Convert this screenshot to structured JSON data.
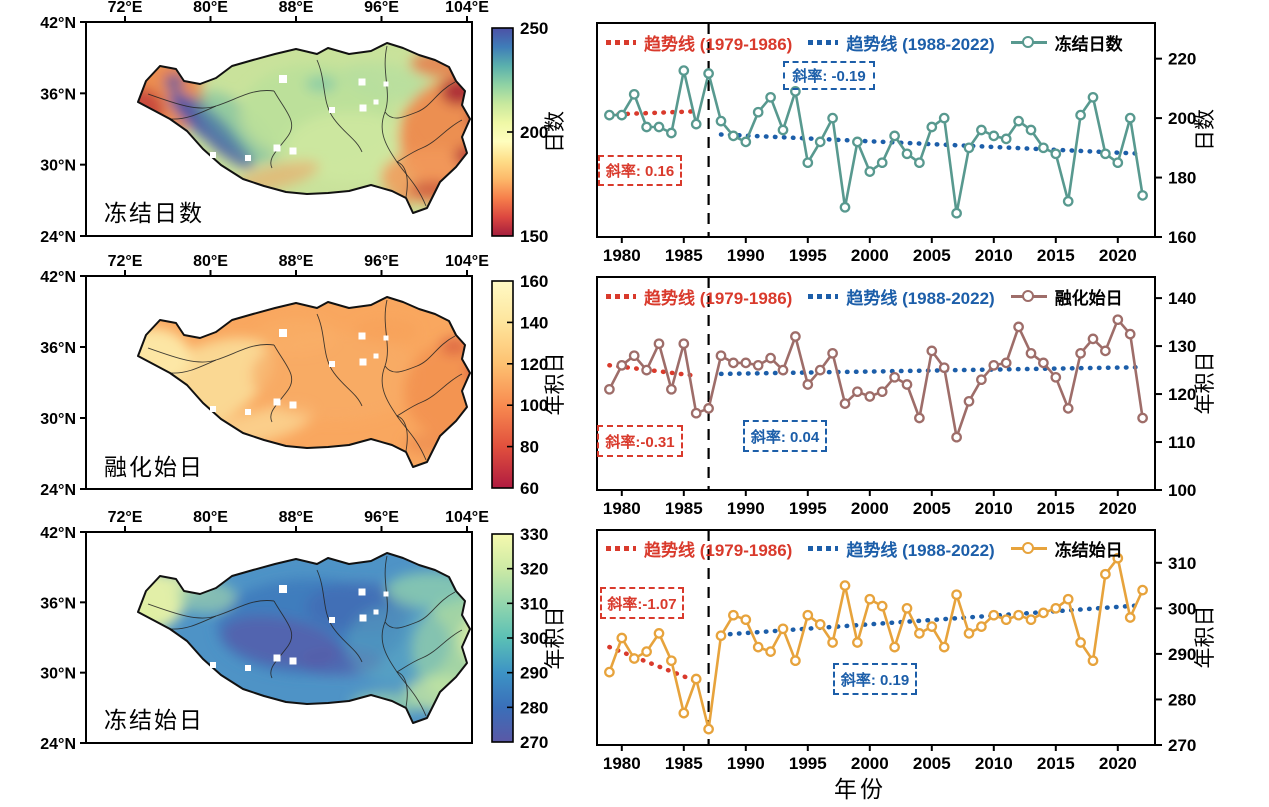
{
  "figure": {
    "xlabel": "年份",
    "background": "#ffffff",
    "accent_red": "#d93a2c",
    "accent_blue": "#1c5ea9"
  },
  "maps": [
    {
      "title": "冻结日数",
      "lon_ticks": [
        "72°E",
        "80°E",
        "88°E",
        "96°E",
        "104°E"
      ],
      "lat_ticks": [
        "42°N",
        "36°N",
        "30°N",
        "24°N"
      ],
      "colorbar": {
        "label": "日数",
        "min": 150,
        "max": 250,
        "ticks": [
          "250",
          "200",
          "150"
        ],
        "gradient_top_to_bottom": [
          "#4c51a5",
          "#3f7db8",
          "#5ab0ad",
          "#8fd2a4",
          "#c7e89e",
          "#eff8a6",
          "#fffebe",
          "#fede89",
          "#fdb869",
          "#f67f4b",
          "#dc4740",
          "#a41e3d"
        ]
      }
    },
    {
      "title": "融化始日",
      "lon_ticks": [
        "72°E",
        "80°E",
        "88°E",
        "96°E",
        "104°E"
      ],
      "lat_ticks": [
        "42°N",
        "36°N",
        "30°N",
        "24°N"
      ],
      "colorbar": {
        "label": "年积日",
        "min": 60,
        "max": 160,
        "ticks": [
          "160",
          "140",
          "120",
          "100",
          "80",
          "60"
        ],
        "gradient_top_to_bottom": [
          "#fffac5",
          "#fee59c",
          "#fdc171",
          "#f88b50",
          "#e1503d",
          "#b01b40"
        ]
      }
    },
    {
      "title": "冻结始日",
      "lon_ticks": [
        "72°E",
        "80°E",
        "88°E",
        "96°E",
        "104°E"
      ],
      "lat_ticks": [
        "42°N",
        "36°N",
        "30°N",
        "24°N"
      ],
      "colorbar": {
        "label": "年积日",
        "min": 270,
        "max": 330,
        "ticks": [
          "330",
          "320",
          "310",
          "300",
          "290",
          "280",
          "270"
        ],
        "gradient_top_to_bottom": [
          "#f5f9ae",
          "#cdeaa5",
          "#93d6ad",
          "#5bc0b5",
          "#3d93c5",
          "#3a6fb9",
          "#5a58a6"
        ]
      }
    }
  ],
  "chart_data": [
    {
      "type": "line",
      "series_name": "冻结日数",
      "ylabel": "日数",
      "legend_trend1": "趋势线 (1979-1986)",
      "legend_trend2": "趋势线 (1988-2022)",
      "x": [
        1979,
        1980,
        1981,
        1982,
        1983,
        1984,
        1985,
        1986,
        1987,
        1988,
        1989,
        1990,
        1991,
        1992,
        1993,
        1994,
        1995,
        1996,
        1997,
        1998,
        1999,
        2000,
        2001,
        2002,
        2003,
        2004,
        2005,
        2006,
        2007,
        2008,
        2009,
        2010,
        2011,
        2012,
        2013,
        2014,
        2015,
        2016,
        2017,
        2018,
        2019,
        2020,
        2021,
        2022
      ],
      "values": [
        201,
        201,
        208,
        197,
        197,
        195,
        216,
        198,
        215,
        199,
        194,
        192,
        202,
        207,
        196,
        209,
        185,
        192,
        200,
        170,
        192,
        182,
        185,
        194,
        188,
        185,
        197,
        200,
        168,
        190,
        196,
        194,
        193,
        199,
        196,
        190,
        188,
        172,
        201,
        207,
        188,
        185,
        200,
        174
      ],
      "xlim": [
        1978,
        2023
      ],
      "ylim": [
        160,
        232
      ],
      "yticks": [
        160,
        180,
        200,
        220
      ],
      "xticks": [
        1980,
        1985,
        1990,
        1995,
        2000,
        2005,
        2010,
        2015,
        2020
      ],
      "series_color": "#58998f",
      "break_year": 1987,
      "trend_1979_1986": {
        "slope_label": "斜率: 0.16",
        "slope": 0.16,
        "line": [
          [
            1979,
            201.2
          ],
          [
            1986,
            202.3
          ]
        ],
        "color": "#d93a2c"
      },
      "trend_1988_2022": {
        "slope_label": "斜率: -0.19",
        "slope": -0.19,
        "line": [
          [
            1988,
            194.5
          ],
          [
            2022,
            188.0
          ]
        ],
        "color": "#1c5ea9"
      }
    },
    {
      "type": "line",
      "series_name": "融化始日",
      "ylabel": "年积日",
      "legend_trend1": "趋势线 (1979-1986)",
      "legend_trend2": "趋势线 (1988-2022)",
      "x": [
        1979,
        1980,
        1981,
        1982,
        1983,
        1984,
        1985,
        1986,
        1987,
        1988,
        1989,
        1990,
        1991,
        1992,
        1993,
        1994,
        1995,
        1996,
        1997,
        1998,
        1999,
        2000,
        2001,
        2002,
        2003,
        2004,
        2005,
        2006,
        2007,
        2008,
        2009,
        2010,
        2011,
        2012,
        2013,
        2014,
        2015,
        2016,
        2017,
        2018,
        2019,
        2020,
        2021,
        2022
      ],
      "values": [
        121,
        126,
        128,
        125,
        130.5,
        121,
        130.5,
        116,
        117,
        128,
        126.5,
        126.5,
        126,
        127.5,
        125,
        132,
        122,
        125,
        128.5,
        118,
        120.5,
        119.5,
        120.5,
        123.5,
        122,
        115,
        129,
        125.5,
        111,
        118.5,
        123,
        126,
        126.5,
        134,
        128.5,
        126.5,
        123.5,
        117,
        128.5,
        131.5,
        129,
        135.5,
        132.5,
        115
      ],
      "xlim": [
        1978,
        2023
      ],
      "ylim": [
        100,
        144.4
      ],
      "yticks": [
        100,
        110,
        120,
        130,
        140
      ],
      "xticks": [
        1980,
        1985,
        1990,
        1995,
        2000,
        2005,
        2010,
        2015,
        2020
      ],
      "series_color": "#9e6d69",
      "break_year": 1987,
      "trend_1979_1986": {
        "slope_label": "斜率:-0.31",
        "slope": -0.31,
        "line": [
          [
            1979,
            126.0
          ],
          [
            1986,
            123.8
          ]
        ],
        "color": "#d93a2c"
      },
      "trend_1988_2022": {
        "slope_label": "斜率: 0.04",
        "slope": 0.04,
        "line": [
          [
            1988,
            124.2
          ],
          [
            2022,
            125.6
          ]
        ],
        "color": "#1c5ea9"
      }
    },
    {
      "type": "line",
      "series_name": "冻结始日",
      "ylabel": "年积日",
      "legend_trend1": "趋势线 (1979-1986)",
      "legend_trend2": "趋势线 (1988-2022)",
      "x": [
        1979,
        1980,
        1981,
        1982,
        1983,
        1984,
        1985,
        1986,
        1987,
        1988,
        1989,
        1990,
        1991,
        1992,
        1993,
        1994,
        1995,
        1996,
        1997,
        1998,
        1999,
        2000,
        2001,
        2002,
        2003,
        2004,
        2005,
        2006,
        2007,
        2008,
        2009,
        2010,
        2011,
        2012,
        2013,
        2014,
        2015,
        2016,
        2017,
        2018,
        2019,
        2020,
        2021,
        2022
      ],
      "values": [
        286,
        293.5,
        289,
        290.5,
        294.5,
        288.5,
        277,
        284.5,
        273.5,
        294,
        298.5,
        297.5,
        291.5,
        290.5,
        295.5,
        288.5,
        298.5,
        296.5,
        292.5,
        305,
        292.5,
        302,
        300.5,
        291.5,
        300,
        294.5,
        296,
        291.5,
        303,
        294.5,
        296,
        298.5,
        297.5,
        298.5,
        297.5,
        299,
        300,
        302,
        292.5,
        288.5,
        307.5,
        311,
        298,
        304
      ],
      "xlim": [
        1978,
        2023
      ],
      "ylim": [
        270,
        317.2
      ],
      "yticks": [
        270,
        280,
        290,
        300,
        310
      ],
      "xticks": [
        1980,
        1985,
        1990,
        1995,
        2000,
        2005,
        2010,
        2015,
        2020
      ],
      "series_color": "#e7a33c",
      "break_year": 1987,
      "trend_1979_1986": {
        "slope_label": "斜率:-1.07",
        "slope": -1.07,
        "line": [
          [
            1979,
            291.5
          ],
          [
            1986,
            284.0
          ]
        ],
        "color": "#d93a2c"
      },
      "trend_1988_2022": {
        "slope_label": "斜率: 0.19",
        "slope": 0.19,
        "line": [
          [
            1988,
            294.2
          ],
          [
            2022,
            300.7
          ]
        ],
        "color": "#1c5ea9"
      }
    }
  ]
}
